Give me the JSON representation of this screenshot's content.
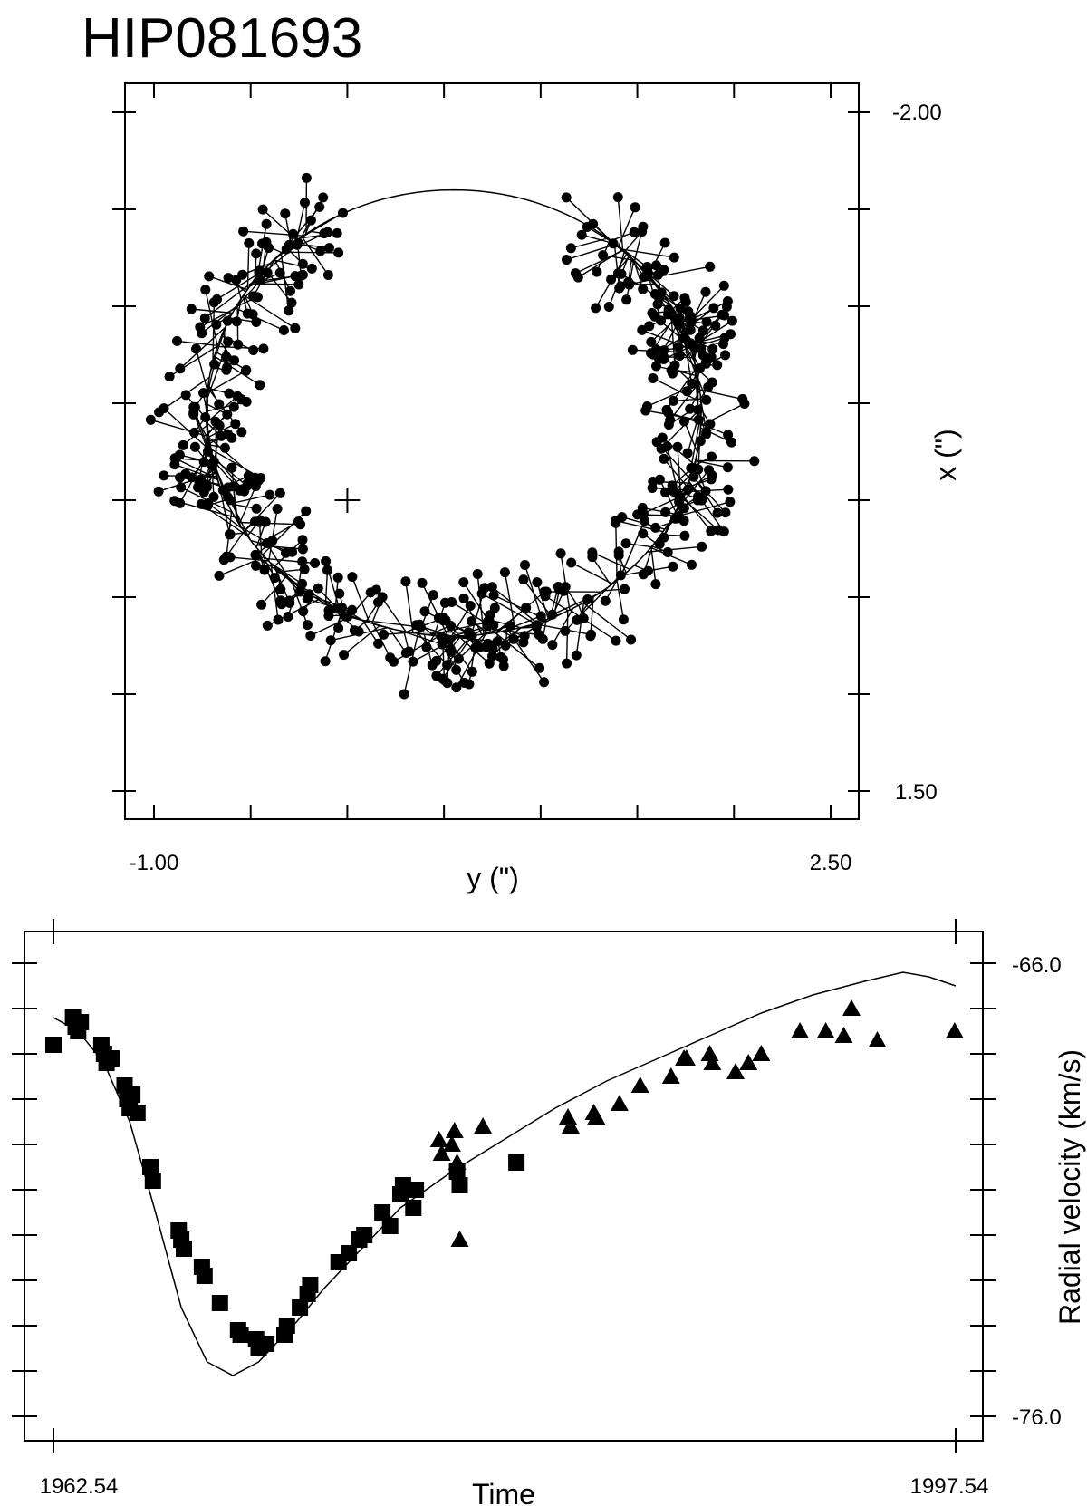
{
  "chart_data": [
    {
      "type": "scatter",
      "title": "HIP081693",
      "xlabel": "y (\")",
      "ylabel": "x (\")",
      "xlim": [
        -1.0,
        2.5
      ],
      "ylim": [
        -2.0,
        1.5
      ],
      "x_tick_labels": [
        "-1.00",
        "2.50"
      ],
      "y_tick_labels": [
        "-2.00",
        "1.50"
      ],
      "y_axis_position": "right",
      "primary_position": [
        0.0,
        -0.0
      ],
      "orbit": {
        "center": [
          0.55,
          -0.45
        ],
        "semi_axes": [
          1.28,
          1.15
        ]
      },
      "observations_note": "each observation point is connected by a residual line to its predicted position on the orbit"
    },
    {
      "type": "line",
      "xlabel": "Time",
      "ylabel": "Radial velocity (km/s)",
      "xlim": [
        1962.54,
        1997.54
      ],
      "ylim": [
        -76.0,
        -66.0
      ],
      "x_tick_labels": [
        "1962.54",
        "1997.54"
      ],
      "y_tick_labels": [
        "-66.0",
        "-76.0"
      ],
      "y_axis_position": "right",
      "curve": {
        "x": [
          1962.54,
          1963.5,
          1964.5,
          1965.5,
          1966.5,
          1967.5,
          1968.5,
          1969.5,
          1970.5,
          1971.0,
          1972.0,
          1973.0,
          1974.0,
          1975.0,
          1976.0,
          1978.0,
          1980.0,
          1982.0,
          1984.0,
          1986.0,
          1988.0,
          1990.0,
          1992.0,
          1994.0,
          1995.5,
          1996.5,
          1997.54
        ],
        "y": [
          -67.2,
          -67.5,
          -68.2,
          -69.5,
          -71.5,
          -73.6,
          -74.8,
          -75.1,
          -74.8,
          -74.5,
          -73.9,
          -73.2,
          -72.6,
          -72.0,
          -71.4,
          -70.6,
          -69.9,
          -69.2,
          -68.6,
          -68.1,
          -67.6,
          -67.1,
          -66.7,
          -66.4,
          -66.2,
          -66.3,
          -66.5
        ]
      },
      "series": [
        {
          "marker": "square",
          "x": [
            1962.54,
            1963.3,
            1963.4,
            1963.5,
            1963.6,
            1964.4,
            1964.5,
            1964.6,
            1964.8,
            1965.3,
            1965.4,
            1965.5,
            1965.6,
            1965.8,
            1966.3,
            1966.4,
            1967.4,
            1967.5,
            1967.6,
            1968.3,
            1968.4,
            1969.0,
            1969.7,
            1969.8,
            1970.4,
            1970.5,
            1970.8,
            1971.5,
            1971.6,
            1972.1,
            1972.4,
            1972.5,
            1973.6,
            1974.0,
            1974.4,
            1974.6,
            1975.3,
            1975.6,
            1976.0,
            1976.1,
            1976.5,
            1976.6,
            1978.2,
            1978.3,
            1980.5
          ],
          "y": [
            -67.8,
            -67.2,
            -67.4,
            -67.5,
            -67.3,
            -67.8,
            -68.0,
            -68.2,
            -68.1,
            -68.7,
            -69.0,
            -69.2,
            -68.9,
            -69.3,
            -70.5,
            -70.8,
            -71.9,
            -72.1,
            -72.3,
            -72.7,
            -72.9,
            -73.5,
            -74.1,
            -74.2,
            -74.3,
            -74.5,
            -74.4,
            -74.2,
            -74.0,
            -73.6,
            -73.3,
            -73.1,
            -72.6,
            -72.4,
            -72.1,
            -72.0,
            -71.5,
            -71.8,
            -71.1,
            -70.9,
            -71.4,
            -71.0,
            -70.6,
            -70.9,
            -70.4
          ]
        },
        {
          "marker": "triangle",
          "x": [
            1977.5,
            1977.6,
            1978.0,
            1978.1,
            1978.2,
            1978.3,
            1979.2,
            1982.5,
            1982.6,
            1983.5,
            1983.6,
            1984.5,
            1985.3,
            1986.5,
            1987.0,
            1987.1,
            1988.0,
            1988.1,
            1989.0,
            1989.5,
            1990.0,
            1991.5,
            1992.5,
            1993.2,
            1993.5,
            1994.5,
            1997.5
          ],
          "y": [
            -69.9,
            -70.2,
            -70.0,
            -69.7,
            -70.4,
            -72.1,
            -69.6,
            -69.4,
            -69.6,
            -69.3,
            -69.4,
            -69.1,
            -68.7,
            -68.5,
            -68.1,
            -68.1,
            -68.0,
            -68.2,
            -68.4,
            -68.2,
            -68.0,
            -67.5,
            -67.5,
            -67.6,
            -67.0,
            -67.7,
            -67.5
          ]
        }
      ]
    }
  ]
}
